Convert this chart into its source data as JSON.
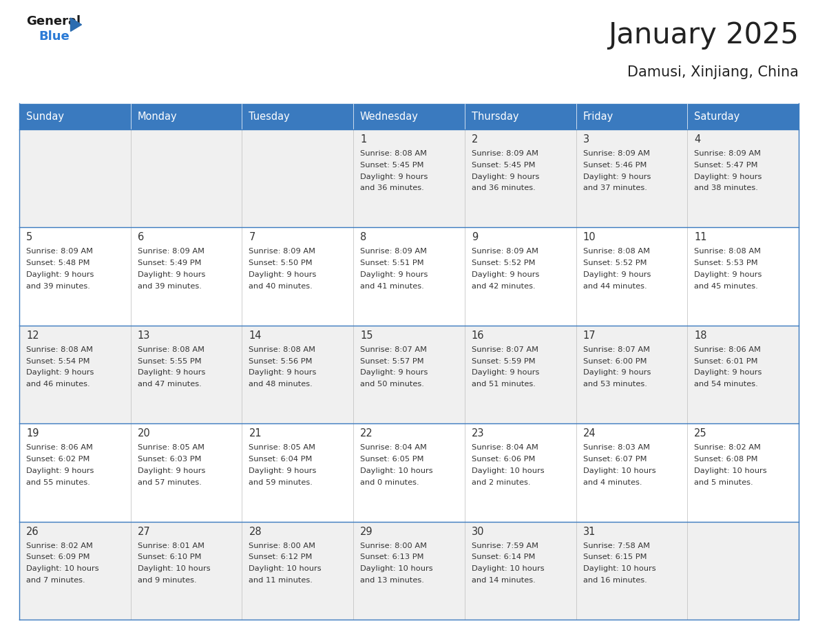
{
  "title": "January 2025",
  "subtitle": "Damusi, Xinjiang, China",
  "days_of_week": [
    "Sunday",
    "Monday",
    "Tuesday",
    "Wednesday",
    "Thursday",
    "Friday",
    "Saturday"
  ],
  "header_bg": "#3a7abf",
  "header_text": "#ffffff",
  "row_bg_odd": "#f0f0f0",
  "row_bg_even": "#ffffff",
  "border_color": "#3a7abf",
  "day_number_color": "#333333",
  "cell_text_color": "#333333",
  "title_color": "#222222",
  "subtitle_color": "#222222",
  "calendar": [
    [
      {
        "day": null,
        "data": null
      },
      {
        "day": null,
        "data": null
      },
      {
        "day": null,
        "data": null
      },
      {
        "day": 1,
        "data": {
          "sunrise": "8:08 AM",
          "sunset": "5:45 PM",
          "daylight": "9 hours and 36 minutes."
        }
      },
      {
        "day": 2,
        "data": {
          "sunrise": "8:09 AM",
          "sunset": "5:45 PM",
          "daylight": "9 hours and 36 minutes."
        }
      },
      {
        "day": 3,
        "data": {
          "sunrise": "8:09 AM",
          "sunset": "5:46 PM",
          "daylight": "9 hours and 37 minutes."
        }
      },
      {
        "day": 4,
        "data": {
          "sunrise": "8:09 AM",
          "sunset": "5:47 PM",
          "daylight": "9 hours and 38 minutes."
        }
      }
    ],
    [
      {
        "day": 5,
        "data": {
          "sunrise": "8:09 AM",
          "sunset": "5:48 PM",
          "daylight": "9 hours and 39 minutes."
        }
      },
      {
        "day": 6,
        "data": {
          "sunrise": "8:09 AM",
          "sunset": "5:49 PM",
          "daylight": "9 hours and 39 minutes."
        }
      },
      {
        "day": 7,
        "data": {
          "sunrise": "8:09 AM",
          "sunset": "5:50 PM",
          "daylight": "9 hours and 40 minutes."
        }
      },
      {
        "day": 8,
        "data": {
          "sunrise": "8:09 AM",
          "sunset": "5:51 PM",
          "daylight": "9 hours and 41 minutes."
        }
      },
      {
        "day": 9,
        "data": {
          "sunrise": "8:09 AM",
          "sunset": "5:52 PM",
          "daylight": "9 hours and 42 minutes."
        }
      },
      {
        "day": 10,
        "data": {
          "sunrise": "8:08 AM",
          "sunset": "5:52 PM",
          "daylight": "9 hours and 44 minutes."
        }
      },
      {
        "day": 11,
        "data": {
          "sunrise": "8:08 AM",
          "sunset": "5:53 PM",
          "daylight": "9 hours and 45 minutes."
        }
      }
    ],
    [
      {
        "day": 12,
        "data": {
          "sunrise": "8:08 AM",
          "sunset": "5:54 PM",
          "daylight": "9 hours and 46 minutes."
        }
      },
      {
        "day": 13,
        "data": {
          "sunrise": "8:08 AM",
          "sunset": "5:55 PM",
          "daylight": "9 hours and 47 minutes."
        }
      },
      {
        "day": 14,
        "data": {
          "sunrise": "8:08 AM",
          "sunset": "5:56 PM",
          "daylight": "9 hours and 48 minutes."
        }
      },
      {
        "day": 15,
        "data": {
          "sunrise": "8:07 AM",
          "sunset": "5:57 PM",
          "daylight": "9 hours and 50 minutes."
        }
      },
      {
        "day": 16,
        "data": {
          "sunrise": "8:07 AM",
          "sunset": "5:59 PM",
          "daylight": "9 hours and 51 minutes."
        }
      },
      {
        "day": 17,
        "data": {
          "sunrise": "8:07 AM",
          "sunset": "6:00 PM",
          "daylight": "9 hours and 53 minutes."
        }
      },
      {
        "day": 18,
        "data": {
          "sunrise": "8:06 AM",
          "sunset": "6:01 PM",
          "daylight": "9 hours and 54 minutes."
        }
      }
    ],
    [
      {
        "day": 19,
        "data": {
          "sunrise": "8:06 AM",
          "sunset": "6:02 PM",
          "daylight": "9 hours and 55 minutes."
        }
      },
      {
        "day": 20,
        "data": {
          "sunrise": "8:05 AM",
          "sunset": "6:03 PM",
          "daylight": "9 hours and 57 minutes."
        }
      },
      {
        "day": 21,
        "data": {
          "sunrise": "8:05 AM",
          "sunset": "6:04 PM",
          "daylight": "9 hours and 59 minutes."
        }
      },
      {
        "day": 22,
        "data": {
          "sunrise": "8:04 AM",
          "sunset": "6:05 PM",
          "daylight": "10 hours and 0 minutes."
        }
      },
      {
        "day": 23,
        "data": {
          "sunrise": "8:04 AM",
          "sunset": "6:06 PM",
          "daylight": "10 hours and 2 minutes."
        }
      },
      {
        "day": 24,
        "data": {
          "sunrise": "8:03 AM",
          "sunset": "6:07 PM",
          "daylight": "10 hours and 4 minutes."
        }
      },
      {
        "day": 25,
        "data": {
          "sunrise": "8:02 AM",
          "sunset": "6:08 PM",
          "daylight": "10 hours and 5 minutes."
        }
      }
    ],
    [
      {
        "day": 26,
        "data": {
          "sunrise": "8:02 AM",
          "sunset": "6:09 PM",
          "daylight": "10 hours and 7 minutes."
        }
      },
      {
        "day": 27,
        "data": {
          "sunrise": "8:01 AM",
          "sunset": "6:10 PM",
          "daylight": "10 hours and 9 minutes."
        }
      },
      {
        "day": 28,
        "data": {
          "sunrise": "8:00 AM",
          "sunset": "6:12 PM",
          "daylight": "10 hours and 11 minutes."
        }
      },
      {
        "day": 29,
        "data": {
          "sunrise": "8:00 AM",
          "sunset": "6:13 PM",
          "daylight": "10 hours and 13 minutes."
        }
      },
      {
        "day": 30,
        "data": {
          "sunrise": "7:59 AM",
          "sunset": "6:14 PM",
          "daylight": "10 hours and 14 minutes."
        }
      },
      {
        "day": 31,
        "data": {
          "sunrise": "7:58 AM",
          "sunset": "6:15 PM",
          "daylight": "10 hours and 16 minutes."
        }
      },
      {
        "day": null,
        "data": null
      }
    ]
  ]
}
